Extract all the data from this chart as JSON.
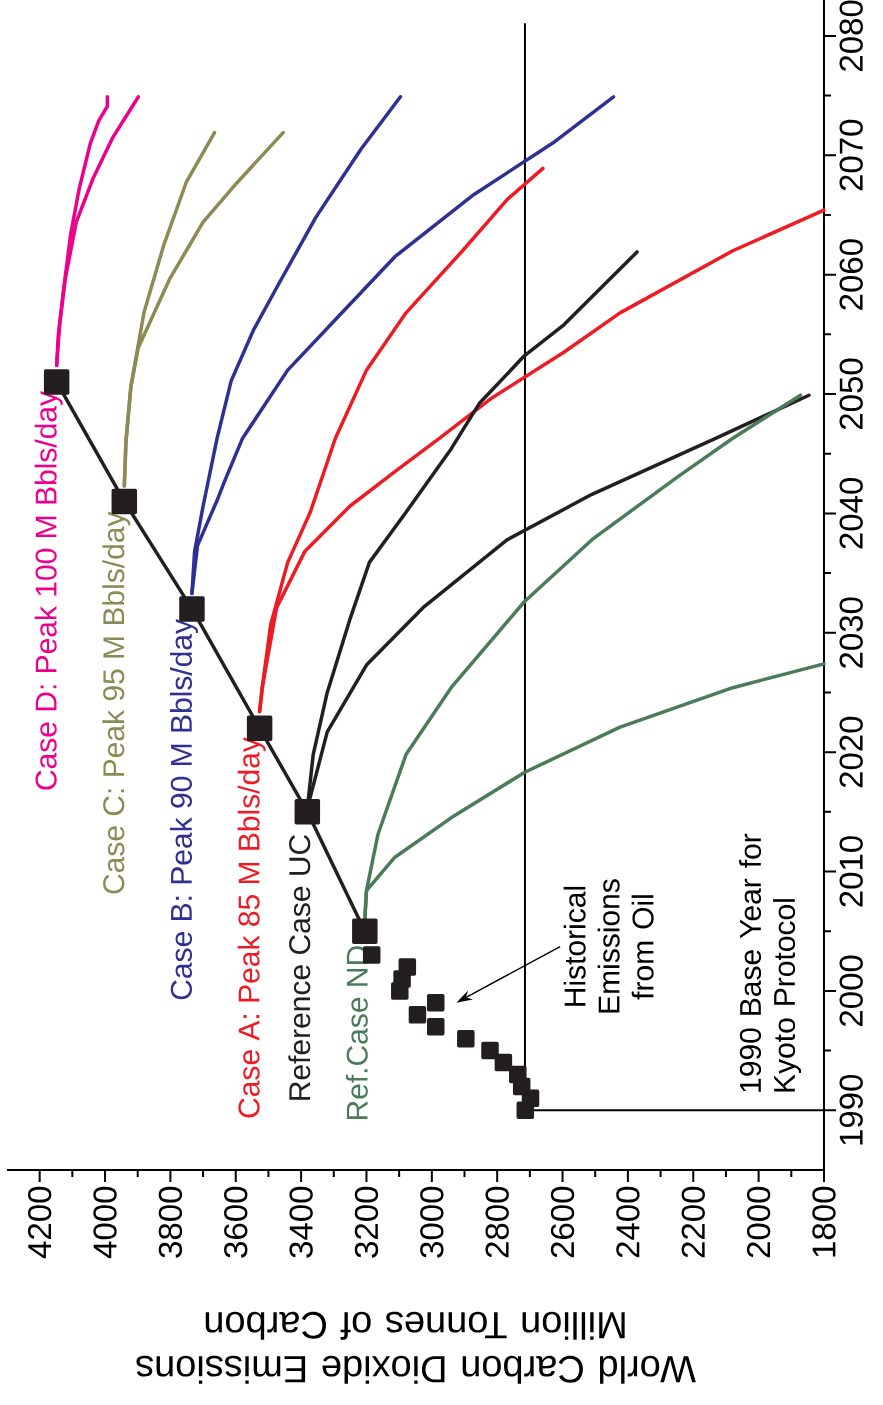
{
  "chart_data": {
    "type": "line",
    "xlabel": "World Carbon Dioxide Emissions Million Tonnes of Carbon",
    "xlim": [
      4300,
      1800
    ],
    "ylim": [
      1985,
      2083
    ],
    "xticks": [
      4200,
      4000,
      3800,
      3600,
      3400,
      3200,
      3000,
      2800,
      2600,
      2400,
      2200,
      2000,
      1800
    ],
    "yticks": [
      1990,
      2000,
      2010,
      2020,
      2030,
      2040,
      2050,
      2060,
      2070,
      2080
    ],
    "grid": false,
    "annotations": [
      "Historical Emissions from Oil",
      "1990 Base Year for Kyoto Protocol"
    ],
    "series": [
      {
        "type": "line",
        "color": "#000000",
        "marker": "none",
        "x": [
          1800,
          2715,
          2715
        ],
        "values": [
          1990,
          1990,
          2081
        ]
      },
      {
        "type": "scatter",
        "color": "#231f20",
        "marker": "square",
        "x": [
          2714,
          2698,
          2725,
          2737,
          2781,
          2822,
          2896,
          2988,
          3044,
          2988,
          3098,
          3091,
          3075,
          3184
        ],
        "values": [
          1990,
          1991,
          1992,
          1993,
          1994,
          1995,
          1996,
          1997,
          1998,
          1999,
          2000,
          2001,
          2002,
          2003
        ]
      },
      {
        "type": "line",
        "color": "#231f20",
        "marker": "square",
        "x": [
          3205,
          3381,
          3527,
          3734,
          3941,
          4148
        ],
        "values": [
          2005,
          2015,
          2022,
          2032,
          2041,
          2051
        ]
      },
      {
        "name": "Case D: Peak 100 M Bbls/day",
        "color": "#ec008c",
        "x": [
          4148,
          4143,
          4127,
          4105,
          4079,
          4045,
          4019,
          3993,
          3993
        ],
        "values": [
          2052.4,
          2054.9,
          2058.7,
          2063.4,
          2067.2,
          2071.0,
          2072.9,
          2074.1,
          2074.9
        ]
      },
      {
        "color": "#ec008c",
        "x": [
          4148,
          4139,
          4122,
          4088,
          4036,
          3976,
          3898
        ],
        "values": [
          2052.4,
          2055.8,
          2059.6,
          2064.4,
          2068.1,
          2071.5,
          2074.9
        ]
      },
      {
        "name": "Case C: Peak 95 M Bbls/day",
        "color": "#8c8a55",
        "x": [
          3941,
          3936,
          3921,
          3881,
          3820,
          3752,
          3665
        ],
        "values": [
          2042.3,
          2046.0,
          2050.6,
          2056.8,
          2062.5,
          2067.7,
          2071.9
        ]
      },
      {
        "color": "#8c8a55",
        "x": [
          3941,
          3936,
          3921,
          3898,
          3803,
          3700,
          3596,
          3455
        ],
        "values": [
          2042.3,
          2046.0,
          2050.6,
          2053.9,
          2059.6,
          2064.4,
          2067.7,
          2071.9
        ]
      },
      {
        "name": "Case B: Peak 90 M Bbls/day",
        "color": "#2e3192",
        "x": [
          3734,
          3726,
          3700,
          3657,
          3614,
          3545,
          3475,
          3355,
          3217,
          3096
        ],
        "values": [
          2033.3,
          2036.8,
          2040.6,
          2046.3,
          2051.1,
          2055.4,
          2058.9,
          2064.8,
          2070.5,
          2074.9
        ]
      },
      {
        "color": "#2e3192",
        "x": [
          3734,
          3717,
          3657,
          3634,
          3579,
          3441,
          3286,
          3113,
          2872,
          2631,
          2444
        ],
        "values": [
          2033.3,
          2037.3,
          2041.1,
          2042.7,
          2046.3,
          2052.0,
          2056.5,
          2061.5,
          2066.7,
          2071.0,
          2074.9
        ]
      },
      {
        "name": "Case A: Peak 85 M Bbls/day",
        "color": "#ed1c24",
        "x": [
          3527,
          3519,
          3493,
          3441,
          3372,
          3295,
          3200,
          3079,
          2906,
          2769,
          2660
        ],
        "values": [
          2023.4,
          2025.4,
          2030.7,
          2035.9,
          2040.1,
          2046.3,
          2052.0,
          2056.8,
          2062.0,
          2066.3,
          2068.9
        ]
      },
      {
        "color": "#ed1c24",
        "x": [
          3527,
          3519,
          3475,
          3389,
          3251,
          3113,
          2976,
          2820,
          2596,
          2424,
          2079,
          1800
        ],
        "values": [
          2023.4,
          2025.4,
          2032.1,
          2036.8,
          2040.6,
          2043.5,
          2046.3,
          2049.6,
          2053.5,
          2056.8,
          2062.0,
          2065.4
        ]
      },
      {
        "name": "Reference Case UC",
        "color": "#231f20",
        "x": [
          3381,
          3363,
          3320,
          3251,
          3191,
          3079,
          2941,
          2855,
          2717,
          2596,
          2372
        ],
        "values": [
          2015.3,
          2019.8,
          2025.0,
          2031.1,
          2035.9,
          2040.1,
          2045.4,
          2049.2,
          2053.2,
          2055.8,
          2061.9
        ]
      },
      {
        "color": "#231f20",
        "x": [
          3381,
          3320,
          3200,
          3027,
          2769,
          2510,
          2130,
          1846
        ],
        "values": [
          2015.3,
          2021.7,
          2027.3,
          2032.1,
          2037.8,
          2041.6,
          2046.3,
          2049.9
        ]
      },
      {
        "name": "Ref.Case ND",
        "color": "#4a7c59",
        "x": [
          3205,
          3200,
          3165,
          3079,
          2941,
          2717,
          2510,
          2251,
          2079,
          1872
        ],
        "values": [
          2006,
          2008.4,
          2013.1,
          2019.8,
          2025.4,
          2032.6,
          2037.8,
          2043.0,
          2046.3,
          2049.9
        ]
      },
      {
        "color": "#4a7c59",
        "x": [
          3205,
          3200,
          3113,
          2941,
          2717,
          2424,
          2079,
          1800
        ],
        "values": [
          2006,
          2008.4,
          2011.2,
          2014.5,
          2018.3,
          2022.1,
          2025.4,
          2027.4
        ]
      }
    ]
  }
}
